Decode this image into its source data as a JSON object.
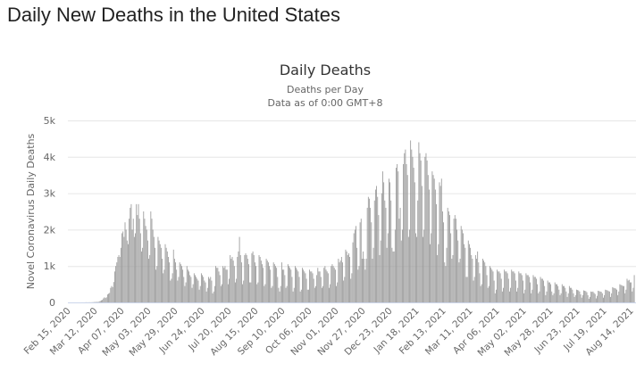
{
  "page": {
    "title": "Daily New Deaths in the United States"
  },
  "chart_data": {
    "type": "bar",
    "title": "Daily Deaths",
    "subtitle": [
      "Deaths per Day",
      "Data as of 0:00 GMT+8"
    ],
    "ylabel": "Novel Coronavirus Daily Deaths",
    "xlabel": "",
    "ylim": [
      0,
      5000
    ],
    "y_ticks": [
      0,
      1000,
      2000,
      3000,
      4000,
      5000
    ],
    "y_tick_labels": [
      "0",
      "1k",
      "2k",
      "3k",
      "4k",
      "5k"
    ],
    "x_tick_labels": [
      "Feb 15, 2020",
      "Mar 12, 2020",
      "Apr 07, 2020",
      "May 03, 2020",
      "May 29, 2020",
      "Jun 24, 2020",
      "Jul 20, 2020",
      "Aug 15, 2020",
      "Sep 10, 2020",
      "Oct 06, 2020",
      "Nov 01, 2020",
      "Nov 27, 2020",
      "Dec 23, 2020",
      "Jan 18, 2021",
      "Feb 13, 2021",
      "Mar 11, 2021",
      "Apr 06, 2021",
      "May 02, 2021",
      "May 28, 2021",
      "Jun 23, 2021",
      "Jul 19, 2021",
      "Aug 14, 2021"
    ],
    "grid": true,
    "legend": "none",
    "bar_color": "#999999",
    "values": [
      0,
      0,
      0,
      0,
      0,
      0,
      0,
      0,
      0,
      0,
      0,
      0,
      0,
      1,
      1,
      0,
      1,
      4,
      3,
      2,
      3,
      4,
      3,
      5,
      7,
      9,
      10,
      12,
      16,
      12,
      30,
      40,
      57,
      70,
      110,
      140,
      120,
      140,
      220,
      240,
      260,
      400,
      450,
      420,
      560,
      850,
      1000,
      1100,
      1250,
      1300,
      1250,
      1500,
      1900,
      1950,
      1800,
      2200,
      2000,
      1700,
      1600,
      2300,
      2600,
      2700,
      2000,
      2300,
      1800,
      1900,
      2700,
      2400,
      2700,
      2300,
      1900,
      1400,
      1500,
      2500,
      2300,
      2100,
      2000,
      1700,
      1200,
      1300,
      2500,
      2300,
      2000,
      1800,
      1500,
      900,
      1000,
      1800,
      1700,
      1600,
      1500,
      1200,
      800,
      900,
      1600,
      1500,
      1400,
      1250,
      1100,
      600,
      650,
      800,
      1450,
      1200,
      1100,
      900,
      600,
      700,
      1100,
      1050,
      1000,
      900,
      700,
      450,
      550,
      1000,
      900,
      850,
      750,
      700,
      400,
      500,
      800,
      750,
      700,
      650,
      600,
      350,
      450,
      800,
      750,
      700,
      600,
      550,
      300,
      400,
      700,
      650,
      700,
      600,
      250,
      300,
      450,
      1000,
      950,
      950,
      850,
      750,
      450,
      500,
      1000,
      950,
      1000,
      900,
      900,
      500,
      650,
      1300,
      1200,
      1250,
      1150,
      1000,
      550,
      650,
      1250,
      1400,
      1800,
      1300,
      1100,
      500,
      600,
      1300,
      1350,
      1300,
      1200,
      1050,
      550,
      550,
      1350,
      1400,
      1300,
      1100,
      1000,
      500,
      550,
      1300,
      1250,
      1150,
      1050,
      950,
      450,
      500,
      1200,
      1150,
      1100,
      1000,
      900,
      400,
      450,
      1100,
      1050,
      1000,
      950,
      700,
      400,
      300,
      450,
      1100,
      900,
      900,
      750,
      400,
      450,
      1050,
      1000,
      950,
      900,
      700,
      300,
      400,
      1000,
      950,
      900,
      850,
      700,
      300,
      350,
      950,
      900,
      850,
      800,
      650,
      350,
      350,
      900,
      850,
      850,
      800,
      650,
      400,
      450,
      750,
      950,
      850,
      850,
      700,
      400,
      450,
      950,
      1000,
      900,
      850,
      800,
      400,
      500,
      1000,
      1050,
      1000,
      950,
      900,
      450,
      550,
      1200,
      1100,
      1150,
      1250,
      1100,
      600,
      700,
      1450,
      1400,
      1300,
      1350,
      1250,
      650,
      800,
      1650,
      1900,
      2000,
      2100,
      1500,
      900,
      1000,
      2200,
      2300,
      1200,
      1400,
      1200,
      900,
      1200,
      2600,
      2900,
      2850,
      2600,
      2200,
      1200,
      1500,
      2800,
      3100,
      3200,
      2900,
      2400,
      1300,
      1700,
      3000,
      3600,
      3300,
      2800,
      2600,
      1500,
      1900,
      3400,
      3300,
      2800,
      1500,
      1400,
      1400,
      2000,
      3700,
      3800,
      3600,
      2300,
      2600,
      1700,
      2000,
      3800,
      4100,
      4200,
      3800,
      3500,
      1800,
      2000,
      4450,
      4200,
      4000,
      3700,
      3300,
      1900,
      1800,
      2800,
      4400,
      4100,
      3900,
      3200,
      1800,
      2000,
      4000,
      4100,
      3900,
      3500,
      3100,
      1600,
      1900,
      3600,
      3500,
      3400,
      3100,
      2700,
      1300,
      1600,
      3300,
      3200,
      3400,
      2500,
      2200,
      1100,
      1000,
      1500,
      2600,
      2500,
      2400,
      1900,
      1200,
      1300,
      2300,
      2400,
      2300,
      2000,
      1700,
      1100,
      1200,
      2100,
      2000,
      1900,
      1600,
      1500,
      700,
      700,
      1700,
      1600,
      1500,
      1300,
      1200,
      600,
      700,
      1300,
      1200,
      1400,
      1100,
      800,
      450,
      500,
      1200,
      1150,
      1100,
      1000,
      750,
      400,
      450,
      1000,
      950,
      900,
      850,
      600,
      250,
      350,
      900,
      850,
      850,
      800,
      650,
      300,
      400,
      900,
      850,
      850,
      800,
      650,
      300,
      400,
      900,
      850,
      850,
      800,
      600,
      300,
      400,
      850,
      800,
      800,
      750,
      600,
      250,
      350,
      800,
      750,
      750,
      700,
      550,
      250,
      350,
      750,
      700,
      700,
      650,
      500,
      250,
      300,
      700,
      650,
      650,
      600,
      450,
      200,
      300,
      600,
      550,
      550,
      500,
      300,
      200,
      250,
      550,
      500,
      500,
      450,
      350,
      200,
      250,
      500,
      450,
      450,
      400,
      300,
      150,
      250,
      450,
      400,
      400,
      350,
      250,
      150,
      200,
      350,
      340,
      330,
      300,
      220,
      130,
      200,
      330,
      320,
      310,
      280,
      200,
      100,
      150,
      300,
      290,
      300,
      260,
      230,
      110,
      180,
      320,
      310,
      300,
      290,
      250,
      130,
      200,
      350,
      340,
      330,
      310,
      300,
      150,
      250,
      420,
      400,
      390,
      380,
      350,
      200,
      300,
      500,
      480,
      470,
      450,
      450,
      250,
      350,
      650,
      600,
      620,
      550,
      550,
      300,
      400,
      750
    ]
  }
}
